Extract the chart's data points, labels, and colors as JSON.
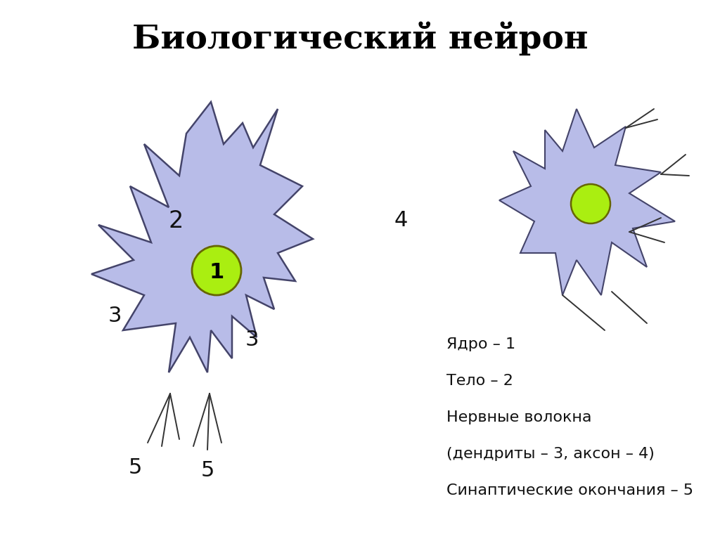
{
  "title": "Биологический нейрон",
  "title_fontsize": 34,
  "title_fontweight": "bold",
  "background_color": "#ffffff",
  "neuron_fill": "#b8bce8",
  "neuron_edge": "#44446a",
  "nucleus_fill": "#aaee11",
  "nucleus_edge": "#666600",
  "text_color": "#111111",
  "legend_lines": [
    "Ядро – 1",
    "Тело – 2",
    "Нервные волокна",
    "(дендриты – 3, аксон – 4)",
    "Синаптические окончания – 5"
  ],
  "legend_fontsize": 16
}
